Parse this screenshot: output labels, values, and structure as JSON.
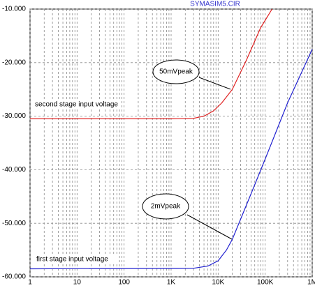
{
  "chart_data": {
    "type": "line",
    "title": "SYMASIM5.CIR",
    "xscale": "log",
    "xlim": [
      1,
      1000000
    ],
    "xticks": [
      1,
      10,
      100,
      {
        "value": 1000,
        "label": "1K"
      },
      {
        "value": 10000,
        "label": "10K"
      },
      {
        "value": 100000,
        "label": "100K"
      },
      {
        "value": 1000000,
        "label": "1M"
      }
    ],
    "ylim": [
      -60,
      -10
    ],
    "yticks": [
      {
        "value": -10,
        "label": "-10.000"
      },
      {
        "value": -20,
        "label": "-20.000"
      },
      {
        "value": -30,
        "label": "-30.000"
      },
      {
        "value": -40,
        "label": "-40.000"
      },
      {
        "value": -50,
        "label": "-50.000"
      },
      {
        "value": -60,
        "label": "-60.000"
      }
    ],
    "grid": true,
    "annotations": [
      "second stage input voltage",
      "50mVpeak",
      "first stage input voltage",
      "2mVpeak"
    ],
    "series": [
      {
        "color": "#e02020",
        "x": [
          1,
          1000,
          3000,
          5000,
          8000,
          12000,
          20000,
          40000,
          80000,
          140000
        ],
        "values": [
          -30.5,
          -30.5,
          -30.4,
          -30,
          -29,
          -27.5,
          -25,
          -19.5,
          -13.5,
          -10
        ]
      },
      {
        "color": "#2020d0",
        "x": [
          1,
          3000,
          6000,
          10000,
          15000,
          20000,
          50000,
          100000,
          300000,
          1000000
        ],
        "values": [
          -58.5,
          -58.4,
          -58,
          -57,
          -55,
          -53,
          -44.5,
          -38,
          -27.5,
          -17.5
        ]
      }
    ]
  }
}
